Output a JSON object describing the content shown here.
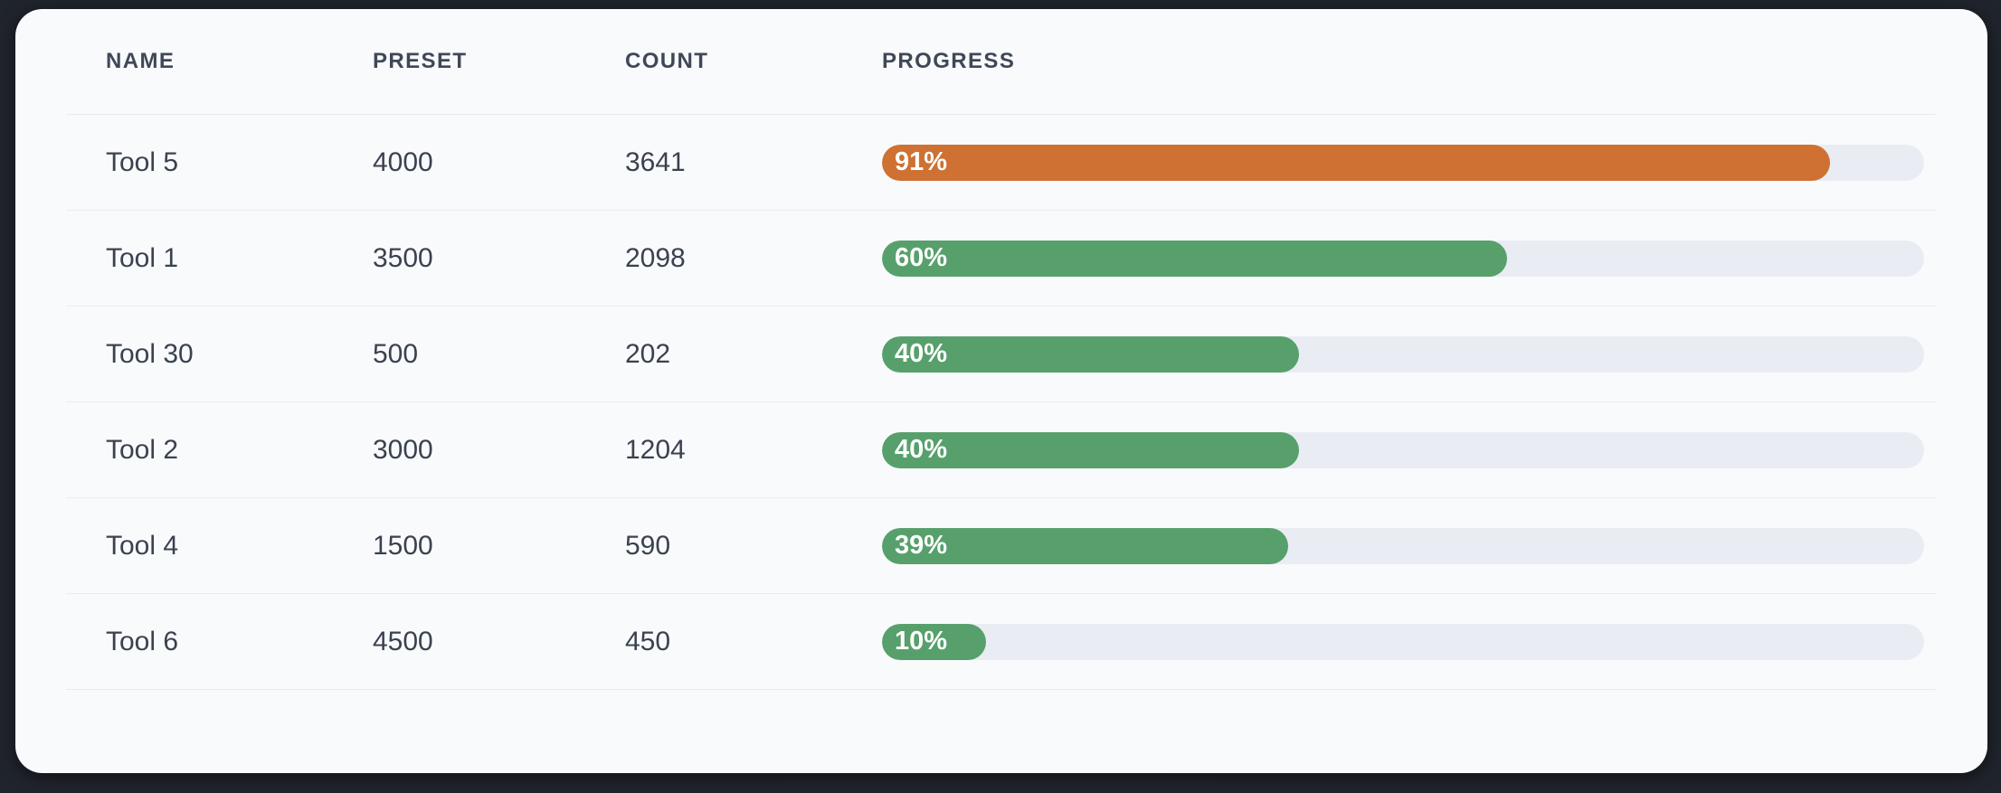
{
  "table": {
    "columns": [
      {
        "key": "name",
        "label": "NAME"
      },
      {
        "key": "preset",
        "label": "PRESET"
      },
      {
        "key": "count",
        "label": "COUNT"
      },
      {
        "key": "progress",
        "label": "PROGRESS"
      }
    ],
    "rows": [
      {
        "name": "Tool 5",
        "preset": "4000",
        "count": "3641",
        "progress_pct": 91,
        "progress_label": "91%",
        "bar_color": "#ce7133"
      },
      {
        "name": "Tool 1",
        "preset": "3500",
        "count": "2098",
        "progress_pct": 60,
        "progress_label": "60%",
        "bar_color": "#57a06c"
      },
      {
        "name": "Tool 30",
        "preset": "500",
        "count": "202",
        "progress_pct": 40,
        "progress_label": "40%",
        "bar_color": "#57a06c"
      },
      {
        "name": "Tool 2",
        "preset": "3000",
        "count": "1204",
        "progress_pct": 40,
        "progress_label": "40%",
        "bar_color": "#57a06c"
      },
      {
        "name": "Tool 4",
        "preset": "1500",
        "count": "590",
        "progress_pct": 39,
        "progress_label": "39%",
        "bar_color": "#57a06c"
      },
      {
        "name": "Tool 6",
        "preset": "4500",
        "count": "450",
        "progress_pct": 10,
        "progress_label": "10%",
        "bar_color": "#57a06c"
      }
    ]
  },
  "colors": {
    "page_background": "#20242c",
    "card_background": "#f9fafc",
    "header_text": "#3f4857",
    "cell_text": "#3a424f",
    "divider": "#e8ecf2",
    "progress_track": "#e9edf3",
    "bar_green": "#57a06c",
    "bar_orange": "#ce7133",
    "bar_label_text": "#ffffff"
  }
}
